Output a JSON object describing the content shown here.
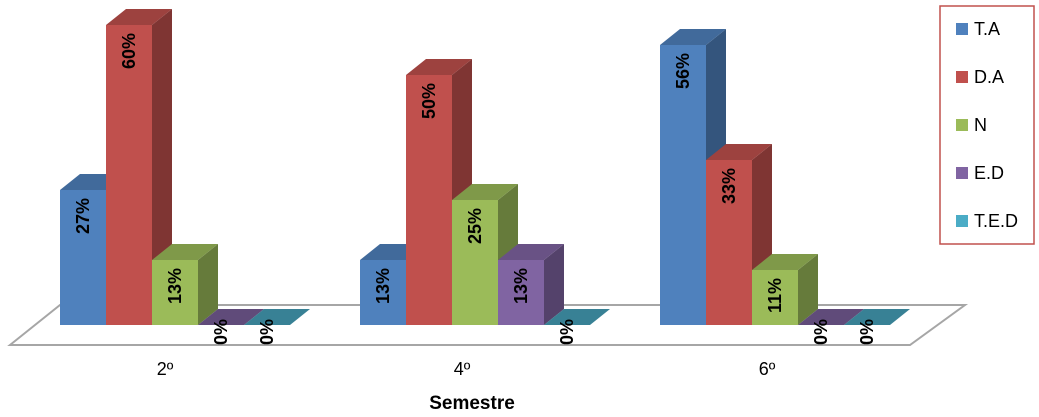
{
  "chart_data": {
    "type": "bar",
    "style": "3d-clustered-column",
    "xlabel": "Semestre",
    "ylabel": "",
    "categories": [
      "2º",
      "4º",
      "6º"
    ],
    "series": [
      {
        "name": "T.A",
        "color": "#4F81BD",
        "values": [
          27,
          13,
          56
        ]
      },
      {
        "name": "D.A",
        "color": "#C0504D",
        "values": [
          60,
          50,
          33
        ]
      },
      {
        "name": "N",
        "color": "#9BBB59",
        "values": [
          13,
          25,
          11
        ]
      },
      {
        "name": "E.D",
        "color": "#8064A2",
        "values": [
          0,
          13,
          0
        ]
      },
      {
        "name": "T.E.D",
        "color": "#4BACC6",
        "values": [
          0,
          0,
          0
        ]
      }
    ],
    "data_labels": [
      [
        "27%",
        "13%",
        "56%"
      ],
      [
        "60%",
        "50%",
        "33%"
      ],
      [
        "13%",
        "25%",
        "11%"
      ],
      [
        "0%",
        "13%",
        "0%"
      ],
      [
        "0%",
        "0%",
        "0%"
      ]
    ],
    "value_axis_range": [
      0,
      60
    ],
    "gridlines": false,
    "legend_position": "right",
    "legend_border_color": "#C0504D"
  }
}
